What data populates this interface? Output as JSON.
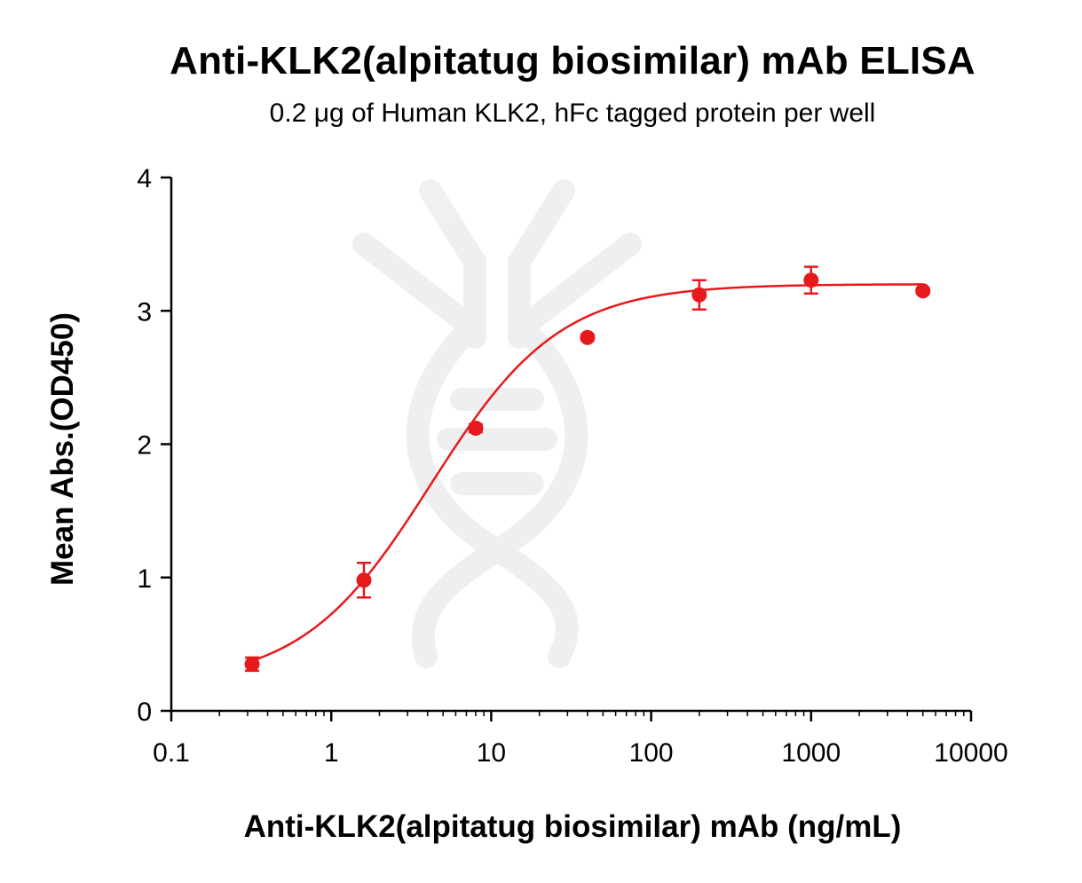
{
  "chart_data": {
    "type": "scatter",
    "title": "Anti-KLK2(alpitatug biosimilar) mAb ELISA",
    "subtitle": "0.2 μg of Human KLK2, hFc tagged protein per well",
    "xlabel": "Anti-KLK2(alpitatug biosimilar) mAb (ng/mL)",
    "ylabel": "Mean Abs.(OD450)",
    "x_scale": "log",
    "xlim": [
      0.1,
      10000
    ],
    "ylim": [
      0,
      4
    ],
    "x_ticks": [
      "0.1",
      "1",
      "10",
      "100",
      "1000",
      "10000"
    ],
    "y_ticks": [
      "0",
      "1",
      "2",
      "3",
      "4"
    ],
    "grid": false,
    "color": "#e8191c",
    "series": [
      {
        "x": [
          0.32,
          1.6,
          8,
          40,
          200,
          1000,
          5000
        ],
        "y": [
          0.35,
          0.98,
          2.12,
          2.8,
          3.12,
          3.23,
          3.15
        ],
        "error": [
          0.05,
          0.13,
          0.03,
          0.02,
          0.11,
          0.1,
          0.02
        ],
        "fit": "4PL"
      }
    ]
  }
}
